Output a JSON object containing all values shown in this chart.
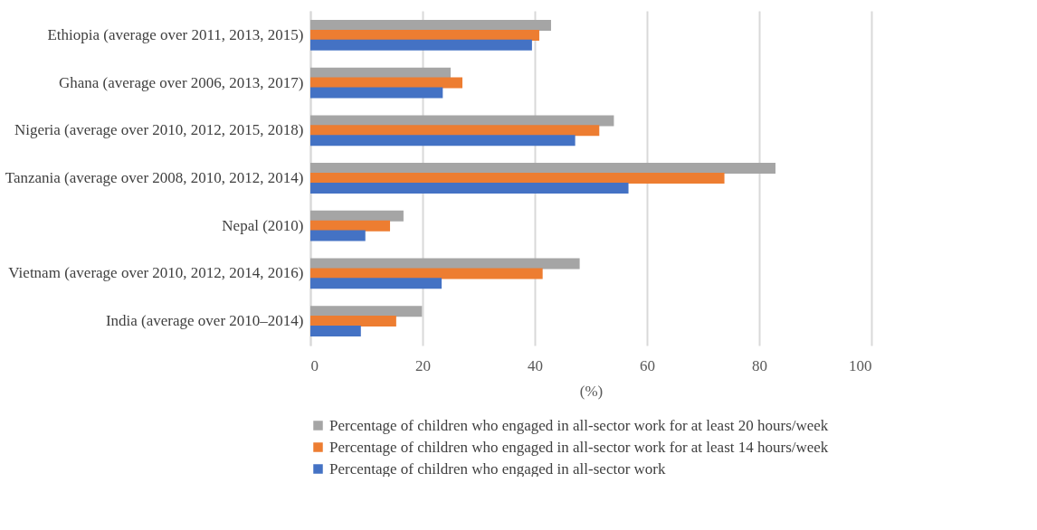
{
  "chart_data": {
    "type": "bar",
    "orientation": "horizontal",
    "xlabel": "(%)",
    "categories": [
      "Ethiopia (average over 2011, 2013, 2015)",
      "Ghana (average over 2006, 2013, 2017)",
      "Nigeria (average over 2010, 2012, 2015, 2018)",
      "Tanzania (average over 2008, 2010, 2012, 2014)",
      "Nepal (2010)",
      "Vietnam (average over 2010, 2012, 2014, 2016)",
      "India (average over 2010–2014)"
    ],
    "series": [
      {
        "name": "Percentage of children who engaged in all-sector work for at least 20 hours/week",
        "color": "#a5a5a5",
        "values": [
          42.9,
          25.0,
          54.1,
          82.9,
          16.6,
          48.0,
          19.9
        ]
      },
      {
        "name": "Percentage of children who engaged in all-sector work for at least 14 hours/week",
        "color": "#ed7d31",
        "values": [
          40.8,
          27.1,
          51.5,
          73.8,
          14.2,
          41.4,
          15.3
        ]
      },
      {
        "name": "Percentage of children who engaged in all-sector work",
        "color": "#4472c4",
        "values": [
          39.5,
          23.6,
          47.2,
          56.7,
          9.8,
          23.4,
          9.0
        ]
      }
    ],
    "xlim": [
      0,
      100
    ],
    "xticks": [
      0,
      20,
      40,
      60,
      80,
      100
    ],
    "grid": "x",
    "legend": "bottom"
  }
}
